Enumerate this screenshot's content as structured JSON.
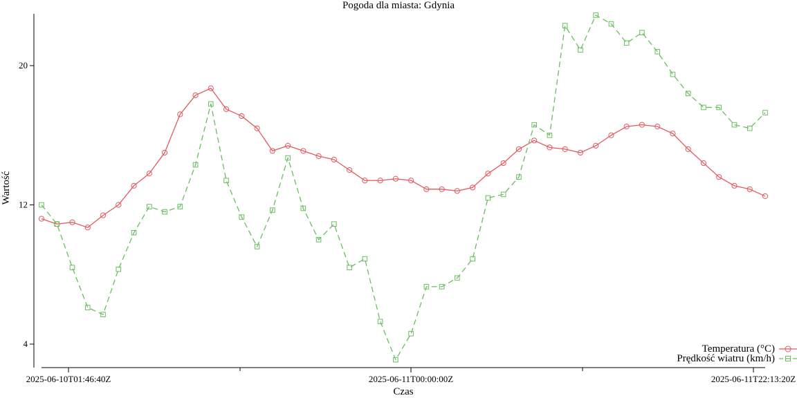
{
  "chart_data": {
    "type": "line",
    "title": "Pogoda dla miasta: Gdynia",
    "xlabel": "Czas",
    "ylabel": "Wartość",
    "x_tick_labels": [
      "2025-06-10T01:46:40Z",
      "2025-06-11T00:00:00Z",
      "2025-06-11T22:13:20Z"
    ],
    "y_ticks": [
      4,
      12,
      20
    ],
    "ylim": [
      3.0,
      23.0
    ],
    "grid": false,
    "legend_position": "bottom-right",
    "n_points": 48,
    "series": [
      {
        "name": "Temperatura (°C)",
        "color": "#e4585f",
        "marker": "circle",
        "dash": "solid",
        "values": [
          11.2,
          10.9,
          11.0,
          10.7,
          11.4,
          12.0,
          13.1,
          13.8,
          15.0,
          17.2,
          18.3,
          18.7,
          17.5,
          17.1,
          16.4,
          15.1,
          15.4,
          15.1,
          14.8,
          14.6,
          14.0,
          13.4,
          13.4,
          13.5,
          13.4,
          12.9,
          12.9,
          12.8,
          13.0,
          13.8,
          14.4,
          15.2,
          15.7,
          15.3,
          15.2,
          15.0,
          15.4,
          16.0,
          16.5,
          16.6,
          16.5,
          16.1,
          15.2,
          14.4,
          13.6,
          13.1,
          12.9,
          12.5
        ]
      },
      {
        "name": "Prędkość wiatru (km/h)",
        "color": "#67bf5c",
        "marker": "square",
        "dash": "dashed",
        "values": [
          12.0,
          10.9,
          8.4,
          6.1,
          5.7,
          8.3,
          10.4,
          11.9,
          11.6,
          11.9,
          14.3,
          17.8,
          13.4,
          11.3,
          9.6,
          11.7,
          14.7,
          11.8,
          10.0,
          10.9,
          8.4,
          8.9,
          5.3,
          3.1,
          4.6,
          7.3,
          7.3,
          7.8,
          8.9,
          12.4,
          12.6,
          13.6,
          16.6,
          16.0,
          22.3,
          20.9,
          22.9,
          22.4,
          21.3,
          21.9,
          20.8,
          19.5,
          18.4,
          17.6,
          17.6,
          16.6,
          16.4,
          17.3
        ]
      }
    ]
  }
}
